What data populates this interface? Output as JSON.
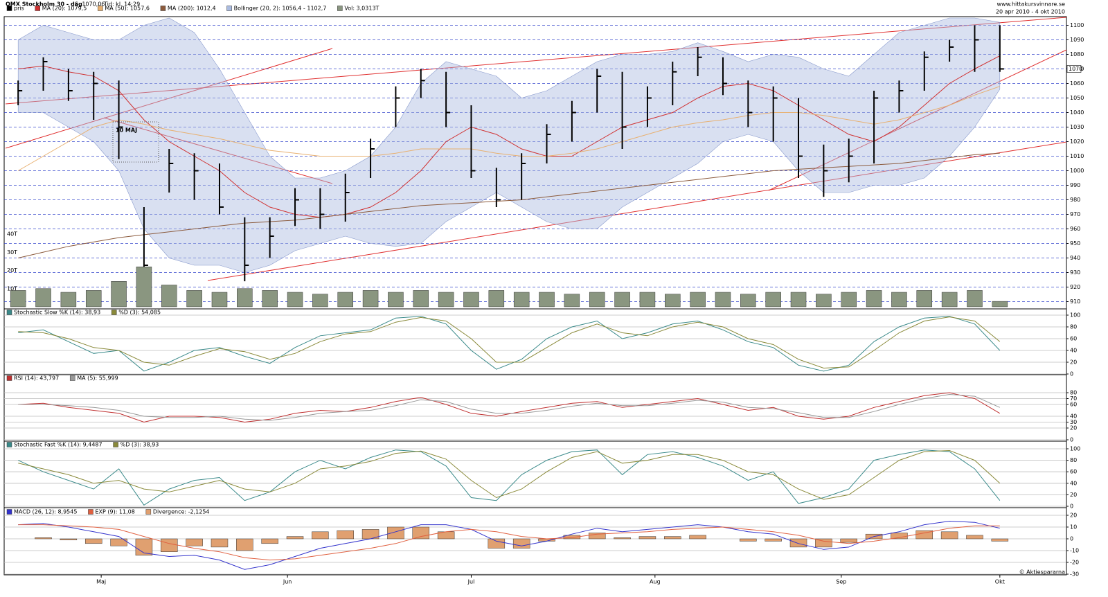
{
  "chart_data": [
    {
      "type": "ohlc",
      "title": "OMX Stockholm 30 - dag",
      "price_label": "S: 1070,06",
      "time_label": "Tid: kl. 14:29",
      "source": "www.hittakursvinnare.se",
      "date_range": "20 apr 2010 - 4 okt 2010",
      "annotation": "10 MAJ",
      "last_price": 1070,
      "ylim": [
        905,
        1105
      ],
      "yticks": [
        910,
        920,
        930,
        940,
        950,
        960,
        970,
        980,
        990,
        1000,
        1010,
        1020,
        1030,
        1040,
        1050,
        1060,
        1070,
        1080,
        1090,
        1100
      ],
      "grid": true,
      "series": [
        {
          "name": "pris",
          "color": "#000000",
          "high": [
            1062,
            1078,
            1070,
            1068,
            1062,
            975,
            1015,
            1012,
            1005,
            968,
            968,
            988,
            988,
            998,
            1022,
            1058,
            1070,
            1068,
            1045,
            1002,
            1012,
            1032,
            1048,
            1070,
            1068,
            1058,
            1075,
            1085,
            1078,
            1062,
            1058,
            1050,
            1018,
            1022,
            1055,
            1062,
            1082,
            1090,
            1100,
            1100
          ],
          "low": [
            1045,
            1055,
            1048,
            1035,
            1008,
            922,
            985,
            980,
            970,
            924,
            940,
            962,
            960,
            965,
            995,
            1030,
            1050,
            1030,
            995,
            975,
            980,
            1005,
            1020,
            1040,
            1015,
            1030,
            1045,
            1065,
            1052,
            1030,
            1020,
            995,
            982,
            992,
            1005,
            1040,
            1055,
            1075,
            1068,
            1068
          ],
          "close": [
            1055,
            1075,
            1055,
            1060,
            1030,
            935,
            1005,
            1000,
            975,
            935,
            955,
            980,
            970,
            985,
            1015,
            1050,
            1062,
            1040,
            1000,
            980,
            1005,
            1025,
            1040,
            1065,
            1030,
            1050,
            1068,
            1078,
            1060,
            1040,
            1050,
            1010,
            1000,
            1010,
            1050,
            1055,
            1078,
            1085,
            1090,
            1070
          ]
        },
        {
          "name": "MA (20): 1079,5",
          "color": "#d03030",
          "values": [
            1070,
            1072,
            1068,
            1065,
            1055,
            1035,
            1020,
            1010,
            1000,
            985,
            975,
            970,
            968,
            970,
            975,
            985,
            1000,
            1020,
            1030,
            1025,
            1015,
            1010,
            1010,
            1020,
            1030,
            1035,
            1040,
            1050,
            1058,
            1060,
            1055,
            1045,
            1035,
            1025,
            1020,
            1030,
            1045,
            1060,
            1070,
            1079
          ]
        },
        {
          "name": "MA (50): 1057,6",
          "color": "#e8b070",
          "values": [
            1000,
            1010,
            1020,
            1030,
            1035,
            1032,
            1028,
            1025,
            1022,
            1018,
            1014,
            1012,
            1010,
            1010,
            1010,
            1012,
            1015,
            1015,
            1015,
            1012,
            1010,
            1010,
            1012,
            1015,
            1020,
            1025,
            1030,
            1033,
            1035,
            1038,
            1040,
            1040,
            1038,
            1035,
            1032,
            1035,
            1040,
            1045,
            1052,
            1058
          ]
        },
        {
          "name": "MA (200): 1012,4",
          "color": "#8b5a3c",
          "values": [
            940,
            944,
            948,
            951,
            954,
            956,
            958,
            960,
            962,
            964,
            965,
            966,
            968,
            970,
            972,
            974,
            976,
            977,
            978,
            979,
            980,
            982,
            984,
            986,
            988,
            990,
            992,
            994,
            996,
            998,
            1000,
            1001,
            1002,
            1003,
            1004,
            1005,
            1007,
            1009,
            1011,
            1012
          ]
        },
        {
          "name": "Bollinger (20, 2): 1056,4 - 1102,7",
          "color": "#aabbe0",
          "upper": [
            1090,
            1100,
            1095,
            1090,
            1090,
            1100,
            1105,
            1095,
            1070,
            1040,
            1010,
            995,
            995,
            1000,
            1010,
            1030,
            1060,
            1075,
            1070,
            1065,
            1050,
            1055,
            1065,
            1075,
            1080,
            1080,
            1082,
            1088,
            1082,
            1075,
            1080,
            1078,
            1070,
            1065,
            1080,
            1095,
            1100,
            1105,
            1105,
            1102
          ],
          "lower": [
            1040,
            1040,
            1030,
            1020,
            1000,
            960,
            940,
            935,
            935,
            930,
            935,
            945,
            950,
            955,
            950,
            948,
            950,
            965,
            975,
            985,
            975,
            965,
            960,
            960,
            975,
            985,
            995,
            1005,
            1020,
            1025,
            1020,
            1000,
            985,
            985,
            990,
            990,
            995,
            1010,
            1030,
            1056
          ]
        }
      ]
    },
    {
      "type": "bar",
      "ylim": [
        0,
        40
      ],
      "yticks": [
        {
          "value": 10,
          "label": "10T"
        },
        {
          "value": 20,
          "label": "20T"
        },
        {
          "value": 30,
          "label": "30T"
        },
        {
          "value": 40,
          "label": "40T"
        }
      ],
      "grid": false,
      "series": [
        {
          "name": "Vol: 3,0313T",
          "color": "#8a9680",
          "values": [
            9,
            10,
            8,
            9,
            14,
            22,
            12,
            9,
            8,
            10,
            9,
            8,
            7,
            8,
            9,
            8,
            9,
            8,
            8,
            9,
            8,
            8,
            7,
            8,
            8,
            8,
            7,
            8,
            8,
            7,
            8,
            8,
            7,
            8,
            9,
            8,
            9,
            8,
            9,
            3
          ]
        }
      ]
    },
    {
      "type": "line",
      "ylim": [
        0,
        100
      ],
      "yticks": [
        0,
        20,
        40,
        60,
        80,
        100
      ],
      "grid": true,
      "series": [
        {
          "name": "Stochastic Slow %K (14): 38,93",
          "color": "#3a8a8a",
          "values": [
            70,
            75,
            55,
            35,
            40,
            5,
            20,
            40,
            45,
            30,
            18,
            45,
            65,
            70,
            75,
            95,
            98,
            85,
            40,
            8,
            25,
            60,
            80,
            90,
            60,
            70,
            85,
            90,
            75,
            55,
            45,
            15,
            5,
            15,
            55,
            80,
            95,
            98,
            85,
            40
          ]
        },
        {
          "name": "%D (3): 54,085",
          "color": "#8a8a3a",
          "values": [
            72,
            70,
            60,
            45,
            40,
            20,
            15,
            30,
            43,
            38,
            25,
            35,
            55,
            68,
            72,
            88,
            96,
            90,
            60,
            20,
            20,
            45,
            70,
            85,
            70,
            65,
            80,
            88,
            80,
            60,
            50,
            25,
            10,
            12,
            40,
            70,
            90,
            97,
            90,
            55
          ]
        }
      ]
    },
    {
      "type": "line",
      "ylim": [
        0,
        100
      ],
      "yticks": [
        0,
        20,
        30,
        40,
        60,
        70,
        80
      ],
      "grid": true,
      "series": [
        {
          "name": "RSI (14): 43,797",
          "color": "#c03030",
          "values": [
            60,
            62,
            55,
            50,
            45,
            30,
            40,
            40,
            38,
            30,
            35,
            45,
            50,
            48,
            55,
            65,
            72,
            60,
            45,
            40,
            48,
            55,
            62,
            65,
            55,
            60,
            65,
            70,
            60,
            50,
            55,
            40,
            35,
            40,
            55,
            65,
            75,
            80,
            70,
            45
          ]
        },
        {
          "name": "MA (5): 55,999",
          "color": "#999999",
          "values": [
            60,
            60,
            58,
            55,
            50,
            40,
            38,
            38,
            40,
            35,
            33,
            38,
            45,
            48,
            50,
            58,
            68,
            65,
            52,
            45,
            45,
            50,
            57,
            62,
            58,
            58,
            62,
            67,
            64,
            55,
            53,
            46,
            38,
            38,
            48,
            60,
            70,
            77,
            74,
            55
          ]
        }
      ]
    },
    {
      "type": "line",
      "ylim": [
        0,
        100
      ],
      "yticks": [
        0,
        20,
        40,
        60,
        80,
        100
      ],
      "grid": true,
      "series": [
        {
          "name": "Stochastic Fast %K (14): 9,4487",
          "color": "#3a8a8a",
          "values": [
            80,
            60,
            45,
            30,
            65,
            2,
            30,
            45,
            50,
            10,
            25,
            60,
            80,
            65,
            85,
            98,
            95,
            70,
            15,
            10,
            55,
            80,
            95,
            98,
            55,
            90,
            95,
            85,
            70,
            45,
            60,
            5,
            15,
            30,
            80,
            90,
            98,
            95,
            65,
            10
          ]
        },
        {
          "name": "%D (3): 38,93",
          "color": "#8a8a3a",
          "values": [
            75,
            65,
            55,
            40,
            45,
            30,
            25,
            35,
            45,
            30,
            25,
            40,
            65,
            70,
            78,
            92,
            96,
            82,
            45,
            15,
            30,
            60,
            85,
            95,
            75,
            80,
            90,
            90,
            80,
            60,
            55,
            30,
            12,
            20,
            50,
            80,
            95,
            97,
            80,
            40
          ]
        }
      ]
    },
    {
      "type": "line",
      "credit": "© Aktiespararna",
      "ylim": [
        -30,
        20
      ],
      "yticks": [
        -30,
        -20,
        -10,
        0,
        10,
        20
      ],
      "grid": true,
      "xlim": [
        -0.5,
        39.5
      ],
      "xticks": [
        {
          "value": 3.3,
          "label": "Maj"
        },
        {
          "value": 10.7,
          "label": "Jun"
        },
        {
          "value": 18,
          "label": "Jul"
        },
        {
          "value": 25.3,
          "label": "Aug"
        },
        {
          "value": 32.7,
          "label": "Sep"
        },
        {
          "value": 39,
          "label": "Okt"
        }
      ],
      "series": [
        {
          "name": "MACD (26, 12): 8,9545",
          "color": "#3333cc",
          "values": [
            12,
            13,
            10,
            6,
            2,
            -12,
            -15,
            -14,
            -18,
            -26,
            -22,
            -15,
            -8,
            -4,
            0,
            6,
            12,
            12,
            8,
            -2,
            -6,
            -2,
            4,
            9,
            6,
            8,
            10,
            12,
            10,
            6,
            4,
            -4,
            -9,
            -7,
            2,
            6,
            12,
            15,
            14,
            9
          ]
        },
        {
          "name": "EXP (9): 11,08",
          "color": "#e06040",
          "values": [
            12,
            12,
            11,
            10,
            8,
            2,
            -4,
            -8,
            -11,
            -16,
            -18,
            -17,
            -14,
            -11,
            -8,
            -4,
            2,
            6,
            8,
            6,
            2,
            0,
            1,
            4,
            5,
            6,
            8,
            9,
            10,
            8,
            6,
            3,
            -2,
            -4,
            -2,
            1,
            5,
            9,
            11,
            11
          ]
        },
        {
          "name": "Divergence: -2,1254",
          "color": "#e0a070",
          "mark": "bar",
          "values": [
            0,
            1,
            -1,
            -4,
            -6,
            -14,
            -11,
            -6,
            -7,
            -10,
            -4,
            2,
            6,
            7,
            8,
            10,
            10,
            6,
            0,
            -8,
            -8,
            -2,
            3,
            5,
            1,
            2,
            2,
            3,
            0,
            -2,
            -2,
            -7,
            -7,
            -3,
            4,
            5,
            7,
            6,
            3,
            -2
          ]
        }
      ]
    }
  ]
}
